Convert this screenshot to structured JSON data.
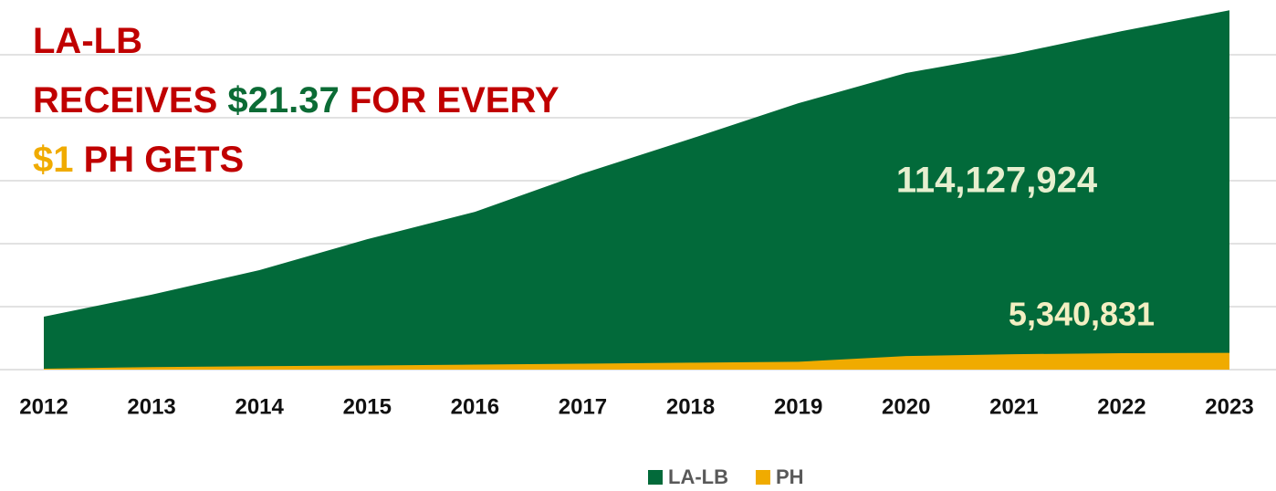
{
  "chart_data": {
    "type": "area",
    "title_lines": [
      [
        "LA-LB"
      ],
      [
        "RECEIVES ",
        "$21.37",
        " FOR EVERY"
      ],
      [
        "$1",
        " PH GETS"
      ]
    ],
    "categories": [
      "2012",
      "2013",
      "2014",
      "2015",
      "2016",
      "2017",
      "2018",
      "2019",
      "2020",
      "2021",
      "2022",
      "2023"
    ],
    "series": [
      {
        "name": "LA-LB",
        "color": "#026a3a",
        "values": [
          16800000,
          23800000,
          31600000,
          41400000,
          50100000,
          62300000,
          73300000,
          84600000,
          94200000,
          100300000,
          107500000,
          114127924
        ],
        "value_labels": [
          null,
          null,
          null,
          null,
          null,
          null,
          null,
          null,
          null,
          null,
          null,
          "114,127,924"
        ]
      },
      {
        "name": "PH",
        "color": "#f0ab00",
        "values": [
          300000,
          800000,
          1100000,
          1300000,
          1600000,
          1900000,
          2200000,
          2500000,
          4300000,
          4900000,
          5200000,
          5340831
        ],
        "value_labels": [
          null,
          null,
          null,
          null,
          null,
          null,
          null,
          null,
          null,
          null,
          null,
          "5,340,831"
        ]
      }
    ],
    "ylim": [
      0,
      120000000
    ],
    "yticks": [
      0,
      20000000,
      40000000,
      60000000,
      80000000,
      100000000,
      120000000
    ],
    "grid": true,
    "legend": "bottom"
  }
}
